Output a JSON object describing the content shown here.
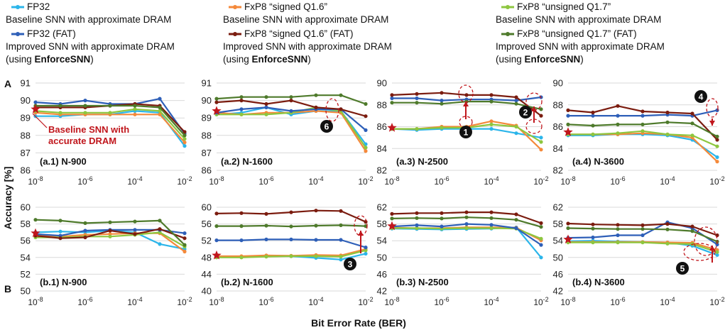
{
  "legend": [
    {
      "name": "FP32",
      "desc": [
        "Baseline SNN with approximate DRAM"
      ],
      "color": "#2bb5ea"
    },
    {
      "name": "FxP8 “signed Q1.6”",
      "desc": [
        "Baseline SNN with approximate DRAM"
      ],
      "color": "#f4893a"
    },
    {
      "name": "FxP8 “unsigned Q1.7”",
      "desc": [
        "Baseline SNN with approximate DRAM"
      ],
      "color": "#8dc63f"
    },
    {
      "name": "FP32 (FAT)",
      "desc": [
        "Improved SNN with approximate DRAM",
        "(using ",
        "EnforceSNN",
        ")"
      ],
      "color": "#2e5fb8"
    },
    {
      "name": "FxP8 “signed Q1.6” (FAT)",
      "desc": [
        "Improved SNN with approximate DRAM",
        "(using ",
        "EnforceSNN",
        ")"
      ],
      "color": "#7b1c0f"
    },
    {
      "name": "FxP8 “unsigned Q1.7” (FAT)",
      "desc": [
        "Improved SNN with approximate DRAM",
        "(using ",
        "EnforceSNN",
        ")"
      ],
      "color": "#4e7a2b"
    }
  ],
  "row_labels": [
    "A",
    "B"
  ],
  "y_axis_label": "Accuracy [%]",
  "x_axis_label": "Bit Error Rate (BER)",
  "baseline_annotation": [
    "Baseline SNN with",
    "accurate DRAM"
  ],
  "baseline_color": "#c0161c",
  "chart_data": [
    {
      "type": "line",
      "title": "(a.1) N-900",
      "ylim": [
        86,
        91
      ],
      "yticks": [
        86,
        87,
        88,
        89,
        90,
        91
      ],
      "xticks": [
        "10-8",
        "10-6",
        "10-4",
        "10-2"
      ],
      "x": [
        -8,
        -7,
        -6,
        -5,
        -4,
        -3,
        -2
      ],
      "baseline": 89.5,
      "series": [
        [
          89.1,
          89.1,
          89.2,
          89.2,
          89.4,
          89.3,
          87.4
        ],
        [
          89.3,
          89.2,
          89.2,
          89.2,
          89.2,
          89.2,
          87.6
        ],
        [
          89.4,
          89.3,
          89.3,
          89.3,
          89.5,
          89.4,
          87.8
        ],
        [
          89.9,
          89.8,
          90.0,
          89.8,
          89.8,
          90.1,
          88.1
        ],
        [
          89.6,
          89.6,
          89.6,
          89.7,
          89.8,
          89.7,
          88.2
        ],
        [
          89.7,
          89.7,
          89.7,
          89.7,
          89.7,
          89.6,
          88.0
        ]
      ],
      "markers": [
        {
          "label": "Baseline SNN with accurate DRAM"
        }
      ]
    },
    {
      "type": "line",
      "title": "(a.2) N-1600",
      "ylim": [
        86,
        91
      ],
      "yticks": [
        86,
        87,
        88,
        89,
        90,
        91
      ],
      "xticks": [
        "10-8",
        "10-6",
        "10-4",
        "10-2"
      ],
      "x": [
        -8,
        -7,
        -6,
        -5,
        -4,
        -3,
        -2
      ],
      "baseline": 89.4,
      "series": [
        [
          89.2,
          89.3,
          89.6,
          89.2,
          89.4,
          89.4,
          87.5
        ],
        [
          89.3,
          89.2,
          89.3,
          89.3,
          89.4,
          89.3,
          87.1
        ],
        [
          89.2,
          89.2,
          89.2,
          89.3,
          89.6,
          89.4,
          87.3
        ],
        [
          89.3,
          89.5,
          89.6,
          89.4,
          89.5,
          89.5,
          88.3
        ],
        [
          89.9,
          90.0,
          89.8,
          90.0,
          89.6,
          89.5,
          89.1
        ],
        [
          90.1,
          90.2,
          90.2,
          90.2,
          90.3,
          90.3,
          89.8
        ]
      ],
      "markers": [
        {
          "label": "6"
        }
      ]
    },
    {
      "type": "line",
      "title": "(a.3) N-2500",
      "ylim": [
        82,
        90
      ],
      "yticks": [
        82,
        84,
        86,
        88,
        90
      ],
      "xticks": [
        "10-8",
        "10-6",
        "10-4",
        "10-2"
      ],
      "x": [
        -8,
        -7,
        -6,
        -5,
        -4,
        -3,
        -2
      ],
      "baseline": 85.9,
      "series": [
        [
          85.8,
          85.7,
          85.8,
          85.8,
          85.8,
          85.4,
          85.0
        ],
        [
          85.8,
          85.8,
          86.0,
          86.0,
          86.5,
          86.1,
          83.9
        ],
        [
          85.8,
          85.8,
          85.9,
          85.9,
          86.2,
          86.0,
          84.6
        ],
        [
          88.6,
          88.6,
          88.4,
          88.5,
          88.5,
          88.4,
          88.7
        ],
        [
          88.9,
          89.0,
          89.1,
          88.9,
          88.9,
          88.7,
          87.0
        ],
        [
          88.2,
          88.2,
          88.1,
          88.3,
          88.3,
          88.1,
          87.6
        ]
      ],
      "markers": [
        {
          "label": "1"
        },
        {
          "label": "2"
        }
      ]
    },
    {
      "type": "line",
      "title": "(a.4) N-3600",
      "ylim": [
        82,
        90
      ],
      "yticks": [
        82,
        84,
        86,
        88,
        90
      ],
      "xticks": [
        "10-8",
        "10-6",
        "10-4",
        "10-2"
      ],
      "x": [
        -8,
        -7,
        -6,
        -5,
        -4,
        -3,
        -2
      ],
      "baseline": 85.5,
      "series": [
        [
          85.2,
          85.2,
          85.3,
          85.3,
          85.2,
          84.8,
          83.2
        ],
        [
          85.3,
          85.3,
          85.3,
          85.4,
          85.3,
          85.0,
          82.8
        ],
        [
          85.3,
          85.3,
          85.4,
          85.6,
          85.3,
          85.2,
          84.2
        ],
        [
          87.0,
          87.0,
          87.0,
          87.0,
          87.1,
          87.0,
          87.5
        ],
        [
          87.5,
          87.3,
          87.9,
          87.4,
          87.3,
          87.2,
          84.8
        ],
        [
          86.2,
          86.1,
          86.2,
          86.2,
          86.4,
          86.3,
          85.1
        ]
      ],
      "markers": [
        {
          "label": "4"
        }
      ]
    },
    {
      "type": "line",
      "title": "(b.1) N-900",
      "ylim": [
        50,
        60
      ],
      "yticks": [
        50,
        52,
        54,
        56,
        58,
        60
      ],
      "xticks": [
        "10-8",
        "10-6",
        "10-4",
        "10-2"
      ],
      "x": [
        -8,
        -7,
        -6,
        -5,
        -4,
        -3,
        -2
      ],
      "baseline": 56.9,
      "series": [
        [
          57.0,
          57.1,
          57.0,
          57.2,
          57.0,
          55.6,
          55.0
        ],
        [
          56.6,
          56.5,
          56.7,
          56.8,
          56.9,
          56.9,
          54.7
        ],
        [
          56.4,
          56.4,
          56.5,
          56.5,
          56.7,
          57.0,
          55.3
        ],
        [
          56.8,
          56.6,
          57.2,
          57.3,
          57.3,
          57.3,
          56.9
        ],
        [
          56.6,
          56.3,
          56.4,
          57.2,
          56.8,
          57.4,
          56.3
        ],
        [
          58.5,
          58.4,
          58.1,
          58.2,
          58.3,
          58.4,
          55.5
        ]
      ],
      "markers": []
    },
    {
      "type": "line",
      "title": "(b.2) N-1600",
      "ylim": [
        40,
        60
      ],
      "yticks": [
        40,
        44,
        48,
        52,
        56,
        60
      ],
      "xticks": [
        "10-8",
        "10-6",
        "10-4",
        "10-2"
      ],
      "x": [
        -8,
        -7,
        -6,
        -5,
        -4,
        -3,
        -2
      ],
      "baseline": 48.5,
      "series": [
        [
          48.2,
          48.1,
          48.4,
          48.3,
          47.9,
          47.5,
          48.9
        ],
        [
          48.3,
          48.3,
          48.5,
          48.4,
          48.6,
          48.5,
          50.0
        ],
        [
          48.0,
          48.0,
          48.2,
          48.3,
          48.3,
          48.2,
          49.7
        ],
        [
          52.1,
          52.1,
          52.3,
          52.3,
          52.2,
          52.2,
          50.4
        ],
        [
          58.5,
          58.6,
          58.4,
          58.8,
          59.2,
          59.1,
          56.5
        ],
        [
          55.5,
          55.5,
          55.6,
          55.4,
          55.6,
          55.7,
          55.5
        ]
      ],
      "markers": [
        {
          "label": "3"
        }
      ]
    },
    {
      "type": "line",
      "title": "(b.3) N-2500",
      "ylim": [
        42,
        62
      ],
      "yticks": [
        42,
        46,
        50,
        54,
        58,
        62
      ],
      "xticks": [
        "10-8",
        "10-6",
        "10-4",
        "10-2"
      ],
      "x": [
        -8,
        -7,
        -6,
        -5,
        -4,
        -3,
        -2
      ],
      "baseline": 57.5,
      "series": [
        [
          56.9,
          56.8,
          56.7,
          56.8,
          56.9,
          57.2,
          50.0
        ],
        [
          57.1,
          57.0,
          57.0,
          57.2,
          57.2,
          57.1,
          54.1
        ],
        [
          57.0,
          57.0,
          56.9,
          57.0,
          57.0,
          56.9,
          54.5
        ],
        [
          57.4,
          57.7,
          57.4,
          58.0,
          57.8,
          57.0,
          53.0
        ],
        [
          60.4,
          60.6,
          60.6,
          60.8,
          60.8,
          60.3,
          58.2
        ],
        [
          59.3,
          59.4,
          59.3,
          59.6,
          59.4,
          59.0,
          57.3
        ]
      ],
      "markers": []
    },
    {
      "type": "line",
      "title": "(b.4) N-3600",
      "ylim": [
        42,
        62
      ],
      "yticks": [
        42,
        46,
        50,
        54,
        58,
        62
      ],
      "xticks": [
        "10-8",
        "10-6",
        "10-4",
        "10-2"
      ],
      "x": [
        -8,
        -7,
        -6,
        -5,
        -4,
        -3,
        -2
      ],
      "baseline": 54.3,
      "series": [
        [
          53.9,
          54.0,
          53.8,
          53.7,
          53.6,
          52.8,
          50.6
        ],
        [
          53.7,
          53.7,
          53.7,
          53.7,
          53.6,
          53.5,
          51.8
        ],
        [
          53.6,
          53.6,
          53.6,
          53.6,
          53.3,
          53.2,
          51.3
        ],
        [
          54.7,
          54.8,
          55.3,
          55.3,
          58.4,
          57.0,
          53.1
        ],
        [
          58.1,
          57.9,
          57.8,
          57.7,
          58.0,
          57.4,
          55.3
        ],
        [
          57.0,
          56.9,
          56.8,
          56.8,
          56.7,
          56.3,
          53.8
        ]
      ],
      "markers": [
        {
          "label": "5"
        }
      ]
    }
  ]
}
